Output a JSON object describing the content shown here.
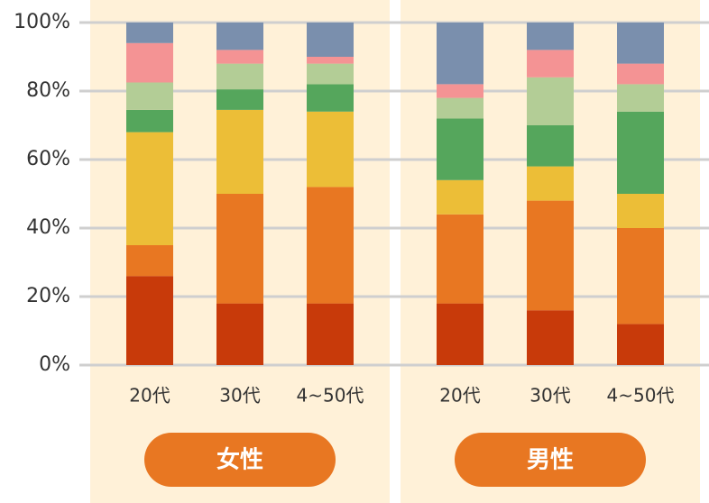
{
  "chart_data": {
    "type": "bar",
    "stacked": true,
    "categories": [
      "20代",
      "30代",
      "4~50代",
      "20代",
      "30代",
      "4~50代"
    ],
    "groups": [
      "女性",
      "男性"
    ],
    "series": [
      {
        "color": "#c83a0a",
        "values": [
          26,
          18,
          18,
          18,
          16,
          12
        ]
      },
      {
        "color": "#e87722",
        "values": [
          9,
          32,
          34,
          26,
          32,
          28
        ]
      },
      {
        "color": "#ecbe37",
        "values": [
          33,
          24.5,
          22,
          10,
          10,
          10
        ]
      },
      {
        "color": "#55a65c",
        "values": [
          6.5,
          6,
          8,
          18,
          12,
          24
        ]
      },
      {
        "color": "#b3cd96",
        "values": [
          8,
          7.5,
          6,
          6,
          14,
          8
        ]
      },
      {
        "color": "#f49394",
        "values": [
          11.5,
          4,
          2,
          4,
          8,
          6
        ]
      },
      {
        "color": "#7a8fad",
        "values": [
          6,
          8,
          10,
          18,
          8,
          12
        ]
      }
    ],
    "ylim": [
      0,
      100
    ],
    "yticks": [
      {
        "value": 0,
        "label": "0%"
      },
      {
        "value": 20,
        "label": "20%"
      },
      {
        "value": 40,
        "label": "40%"
      },
      {
        "value": 60,
        "label": "60%"
      },
      {
        "value": 80,
        "label": "80%"
      },
      {
        "value": 100,
        "label": "100%"
      }
    ],
    "grid": true
  }
}
